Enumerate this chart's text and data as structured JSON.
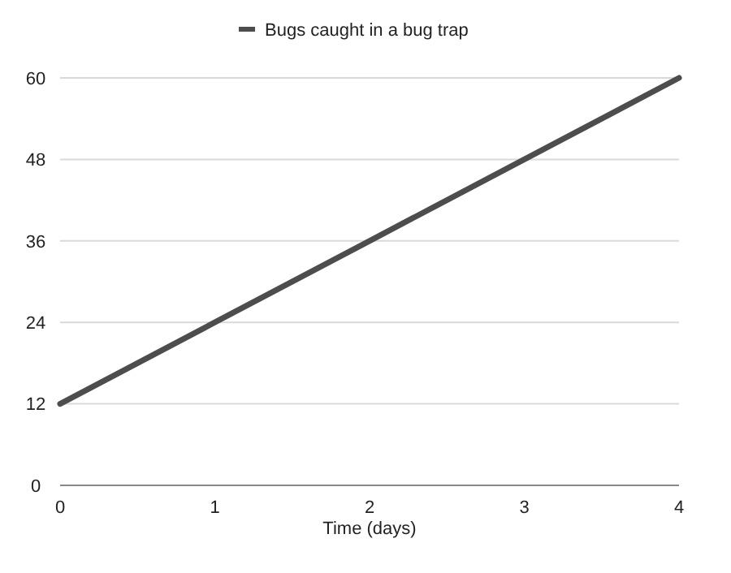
{
  "chart_data": {
    "type": "line",
    "xlabel": "Time (days)",
    "x": [
      0,
      1,
      2,
      3,
      4
    ],
    "series": [
      {
        "name": "Bugs caught in a bug trap",
        "color": "#4d4d4d",
        "values": [
          12,
          24,
          36,
          48,
          60
        ]
      }
    ],
    "xlim": [
      0,
      4
    ],
    "xticks": [
      0,
      1,
      2,
      3,
      4
    ],
    "ylim": [
      0,
      60
    ],
    "yticks": [
      0,
      12,
      24,
      36,
      48,
      60
    ],
    "grid": "y",
    "legend": "top",
    "marker": "none",
    "line_style": "solid"
  }
}
